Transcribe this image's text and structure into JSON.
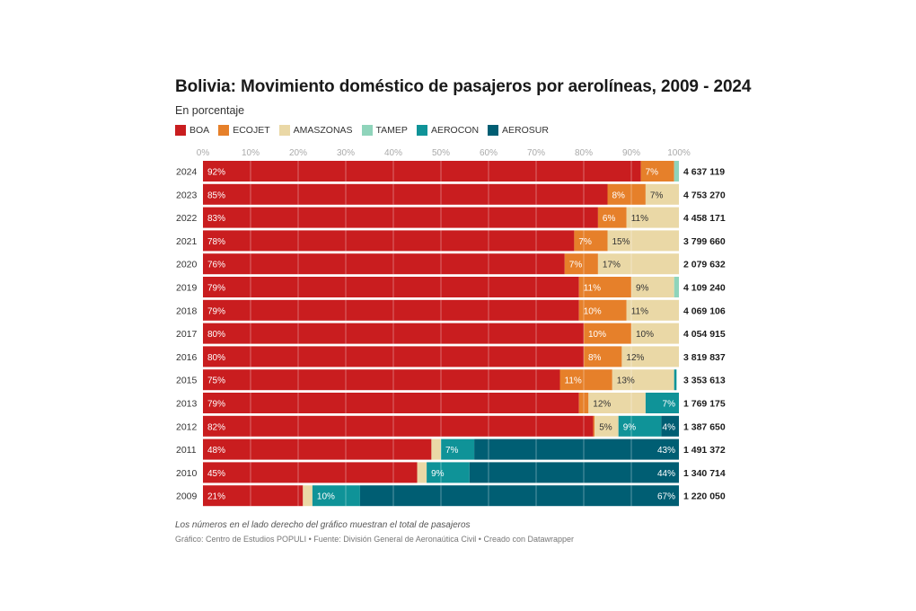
{
  "header": {
    "title": "Bolivia: Movimiento doméstico de pasajeros por aerolíneas, 2009 - 2024",
    "subtitle": "En porcentaje"
  },
  "footer": {
    "note": "Los números en el lado derecho del gráfico muestran el total de pasajeros",
    "credit": "Gráfico: Centro de Estudios POPULI • Fuente: División General de Aeronaútica Civil • Creado con Datawrapper"
  },
  "chart_data": {
    "type": "bar",
    "orientation": "horizontal",
    "stacked": true,
    "title": "Bolivia: Movimiento doméstico de pasajeros por aerolíneas, 2009 - 2024",
    "subtitle": "En porcentaje",
    "xlabel": "",
    "ylabel": "",
    "xlim": [
      0,
      100
    ],
    "x_ticks": [
      "0%",
      "10%",
      "20%",
      "30%",
      "40%",
      "50%",
      "60%",
      "70%",
      "80%",
      "90%",
      "100%"
    ],
    "grid": true,
    "legend_position": "top-left",
    "categories": [
      "2024",
      "2023",
      "2022",
      "2021",
      "2020",
      "2019",
      "2018",
      "2017",
      "2016",
      "2015",
      "2013",
      "2012",
      "2011",
      "2010",
      "2009"
    ],
    "totals": [
      "4 637 119",
      "4 753 270",
      "4 458 171",
      "3 799 660",
      "2 079 632",
      "4 109 240",
      "4 069 106",
      "4 054 915",
      "3 819 837",
      "3 353 613",
      "1 769 175",
      "1 387 650",
      "1 491 372",
      "1 340 714",
      "1 220 050"
    ],
    "series": [
      {
        "name": "BOA",
        "color": "#c91d1f",
        "label_color": "#ffffff",
        "values": [
          92,
          85,
          83,
          78,
          76,
          79,
          79,
          80,
          80,
          75,
          79,
          82,
          48,
          45,
          21
        ],
        "labels": [
          "92%",
          "85%",
          "83%",
          "78%",
          "76%",
          "79%",
          "79%",
          "80%",
          "80%",
          "75%",
          "79%",
          "82%",
          "48%",
          "45%",
          "21%"
        ]
      },
      {
        "name": "ECOJET",
        "color": "#e6802a",
        "label_color": "#ffffff",
        "values": [
          7,
          8,
          6,
          7,
          7,
          11,
          10,
          10,
          8,
          11,
          2,
          0.3,
          0,
          0,
          0
        ],
        "labels": [
          "7%",
          "8%",
          "6%",
          "7%",
          "7%",
          "11%",
          "10%",
          "10%",
          "8%",
          "11%",
          "",
          "",
          "",
          "",
          ""
        ]
      },
      {
        "name": "AMASZONAS",
        "color": "#ead8a6",
        "label_color": "#333333",
        "values": [
          0,
          7,
          11,
          15,
          17,
          9,
          11,
          10,
          12,
          13,
          12,
          5,
          2,
          2,
          2
        ],
        "labels": [
          "",
          "7%",
          "11%",
          "15%",
          "17%",
          "9%",
          "11%",
          "10%",
          "12%",
          "13%",
          "12%",
          "5%",
          "",
          "",
          ""
        ]
      },
      {
        "name": "TAMEP",
        "color": "#8fd4bb",
        "label_color": "#333333",
        "values": [
          1,
          0,
          0,
          0,
          0,
          1,
          0,
          0,
          0,
          0,
          0,
          0,
          0,
          0,
          0
        ],
        "labels": [
          "",
          "",
          "",
          "",
          "",
          "",
          "",
          "",
          "",
          "",
          "",
          "",
          "",
          "",
          ""
        ]
      },
      {
        "name": "AEROCON",
        "color": "#0f9398",
        "label_color": "#ffffff",
        "values": [
          0,
          0,
          0,
          0,
          0,
          0,
          0,
          0,
          0,
          0.5,
          7,
          9,
          7,
          9,
          10
        ],
        "labels": [
          "",
          "",
          "",
          "",
          "",
          "",
          "",
          "",
          "",
          "",
          "7%",
          "9%",
          "7%",
          "9%",
          "10%"
        ]
      },
      {
        "name": "AEROSUR",
        "color": "#005e73",
        "label_color": "#ffffff",
        "values": [
          0,
          0,
          0,
          0,
          0,
          0,
          0,
          0,
          0,
          0,
          0,
          4,
          43,
          44,
          67
        ],
        "labels": [
          "",
          "",
          "",
          "",
          "",
          "",
          "",
          "",
          "",
          "",
          "",
          "4%",
          "43%",
          "44%",
          "67%"
        ]
      }
    ]
  }
}
